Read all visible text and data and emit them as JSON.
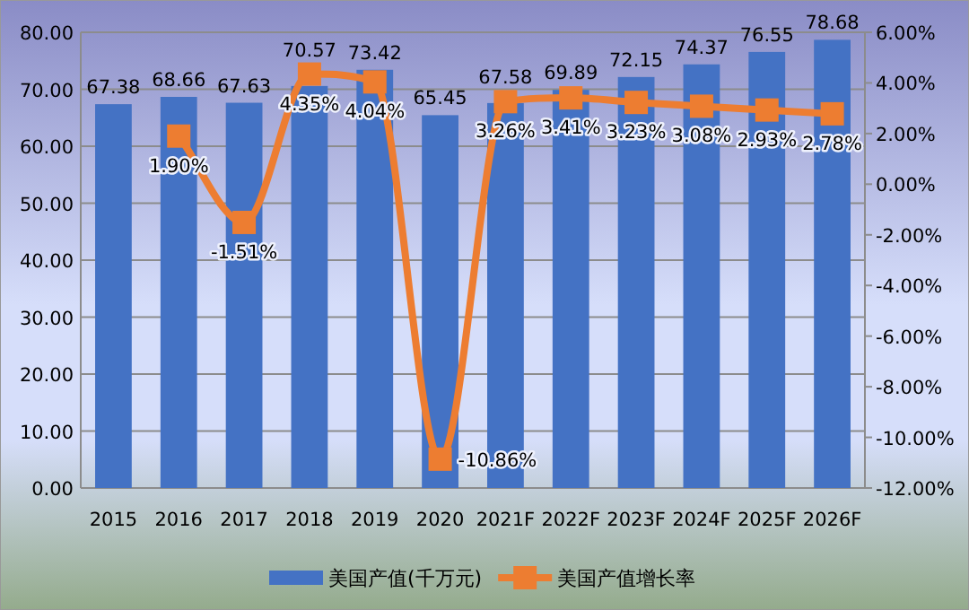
{
  "chart_data": {
    "type": "bar",
    "categories": [
      "2015",
      "2016",
      "2017",
      "2018",
      "2019",
      "2020",
      "2021F",
      "2022F",
      "2023F",
      "2024F",
      "2025F",
      "2026F"
    ],
    "series": [
      {
        "name": "美国产值(千万元)",
        "color": "#4472c4",
        "values": [
          67.38,
          68.66,
          67.63,
          70.57,
          73.42,
          65.45,
          67.58,
          69.89,
          72.15,
          74.37,
          76.55,
          78.68
        ],
        "value_labels": [
          "67.38",
          "68.66",
          "67.63",
          "70.57",
          "73.42",
          "65.45",
          "67.58",
          "69.89",
          "72.15",
          "74.37",
          "76.55",
          "78.68"
        ]
      },
      {
        "name": "美国产值增长率",
        "type": "line",
        "axis": "y2",
        "color": "#ed7d31",
        "values": [
          null,
          1.9,
          -1.51,
          4.35,
          4.04,
          -10.86,
          3.26,
          3.41,
          3.23,
          3.08,
          2.93,
          2.78
        ],
        "value_labels": [
          null,
          "1.90%",
          "-1.51%",
          "4.35%",
          "4.04%",
          "-10.86%",
          "3.26%",
          "3.41%",
          "3.23%",
          "3.08%",
          "2.93%",
          "2.78%"
        ]
      }
    ],
    "ylim": [
      0,
      80
    ],
    "yticks": [
      {
        "value": 0,
        "label": "0.00"
      },
      {
        "value": 10,
        "label": "10.00"
      },
      {
        "value": 20,
        "label": "20.00"
      },
      {
        "value": 30,
        "label": "30.00"
      },
      {
        "value": 40,
        "label": "40.00"
      },
      {
        "value": 50,
        "label": "50.00"
      },
      {
        "value": 60,
        "label": "60.00"
      },
      {
        "value": 70,
        "label": "70.00"
      },
      {
        "value": 80,
        "label": "80.00"
      }
    ],
    "y2lim": [
      -12,
      6
    ],
    "y2ticks": [
      {
        "value": -12,
        "label": "-12.00%"
      },
      {
        "value": -10,
        "label": "-10.00%"
      },
      {
        "value": -8,
        "label": "-8.00%"
      },
      {
        "value": -6,
        "label": "-6.00%"
      },
      {
        "value": -4,
        "label": "-4.00%"
      },
      {
        "value": -2,
        "label": "-2.00%"
      },
      {
        "value": 0,
        "label": "0.00%"
      },
      {
        "value": 2,
        "label": "2.00%"
      },
      {
        "value": 4,
        "label": "4.00%"
      },
      {
        "value": 6,
        "label": "6.00%"
      }
    ],
    "grid": "y",
    "legend": "bottom",
    "marker": "square"
  }
}
